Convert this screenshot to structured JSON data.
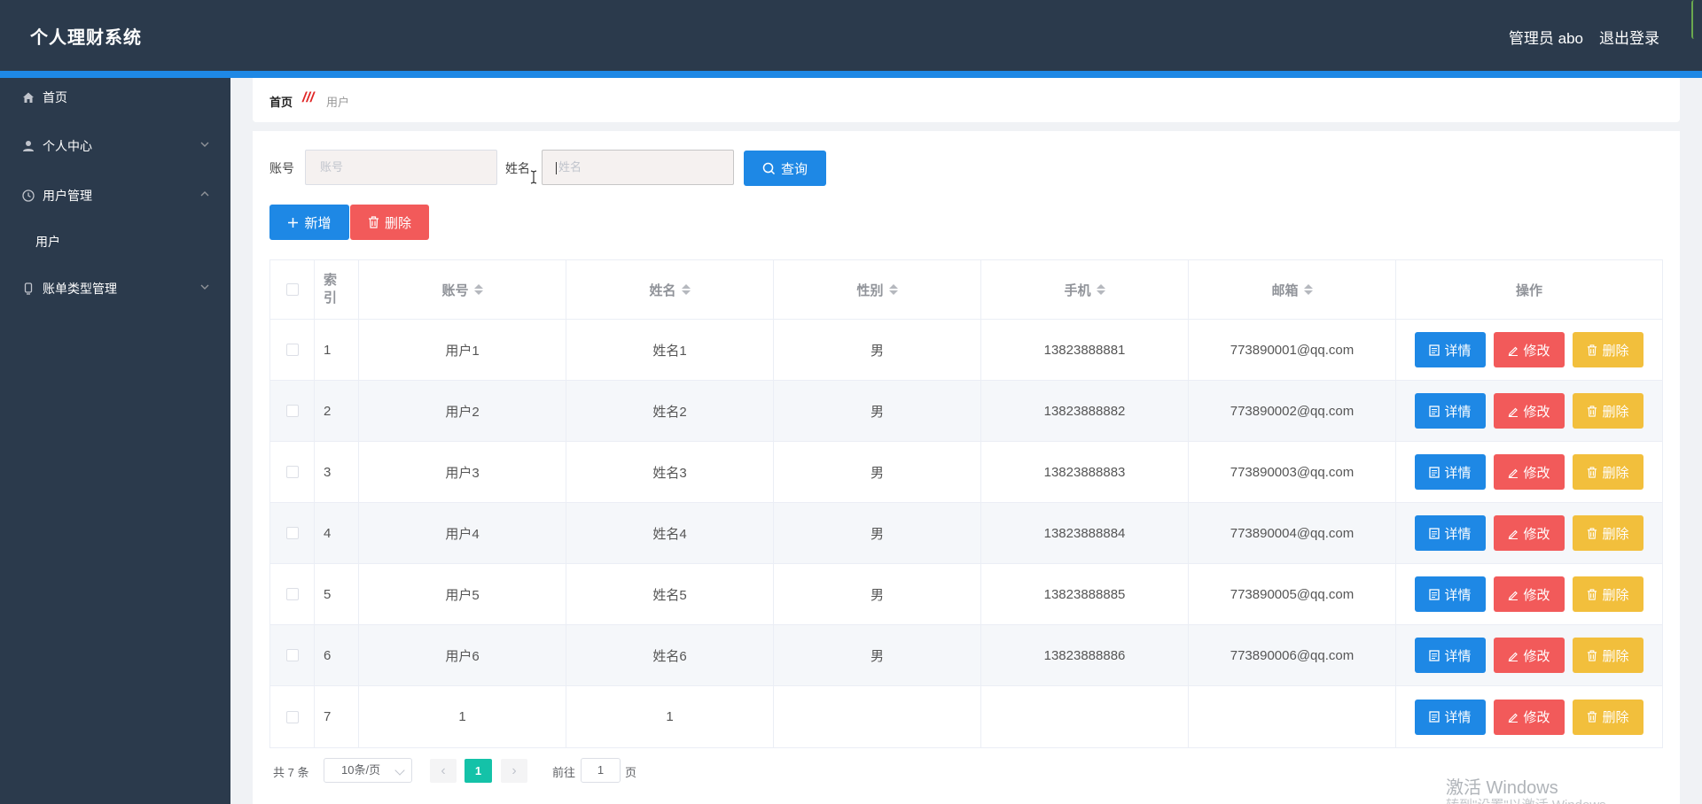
{
  "header": {
    "brand": "个人理财系统",
    "user": "管理员 abo",
    "logout": "退出登录"
  },
  "sidebar": {
    "items": [
      {
        "label": "首页",
        "icon": "home-icon"
      },
      {
        "label": "个人中心",
        "icon": "user-icon"
      },
      {
        "label": "用户管理",
        "icon": "clock-icon"
      },
      {
        "label": "账单类型管理",
        "icon": "device-icon"
      }
    ],
    "sub_items": [
      {
        "label": "用户"
      }
    ]
  },
  "breadcrumb": {
    "home": "首页",
    "separator": "///",
    "current": "用户"
  },
  "search": {
    "account_label": "账号",
    "account_placeholder": "账号",
    "name_label": "姓名",
    "name_placeholder": "姓名",
    "query_button": "查询"
  },
  "toolbar": {
    "add_label": "新增",
    "delete_label": "删除"
  },
  "table": {
    "columns": {
      "index": [
        "索",
        "引"
      ],
      "account": "账号",
      "name": "姓名",
      "gender": "性别",
      "phone": "手机",
      "email": "邮箱",
      "ops": "操作"
    },
    "rows": [
      {
        "index": "1",
        "account": "用户1",
        "name": "姓名1",
        "gender": "男",
        "phone": "13823888881",
        "email": "773890001@qq.com"
      },
      {
        "index": "2",
        "account": "用户2",
        "name": "姓名2",
        "gender": "男",
        "phone": "13823888882",
        "email": "773890002@qq.com"
      },
      {
        "index": "3",
        "account": "用户3",
        "name": "姓名3",
        "gender": "男",
        "phone": "13823888883",
        "email": "773890003@qq.com"
      },
      {
        "index": "4",
        "account": "用户4",
        "name": "姓名4",
        "gender": "男",
        "phone": "13823888884",
        "email": "773890004@qq.com"
      },
      {
        "index": "5",
        "account": "用户5",
        "name": "姓名5",
        "gender": "男",
        "phone": "13823888885",
        "email": "773890005@qq.com"
      },
      {
        "index": "6",
        "account": "用户6",
        "name": "姓名6",
        "gender": "男",
        "phone": "13823888886",
        "email": "773890006@qq.com"
      },
      {
        "index": "7",
        "account": "1",
        "name": "1",
        "gender": "",
        "phone": "",
        "email": ""
      }
    ],
    "row_buttons": {
      "detail": "详情",
      "edit": "修改",
      "delete": "删除"
    }
  },
  "pagination": {
    "total": "共 7 条",
    "page_size": "10条/页",
    "current_page": "1",
    "goto_label": "前往",
    "goto_value": "1",
    "goto_unit": "页"
  },
  "watermark": {
    "line1": "激活 Windows",
    "line2": "转到\"设置\"以激活 Windows。"
  },
  "colors": {
    "header_bg": "#2b3a4c",
    "accent": "#1e88e5",
    "danger": "#f25a5a",
    "warning": "#f2bf3c",
    "pager_active": "#14c2a8"
  }
}
